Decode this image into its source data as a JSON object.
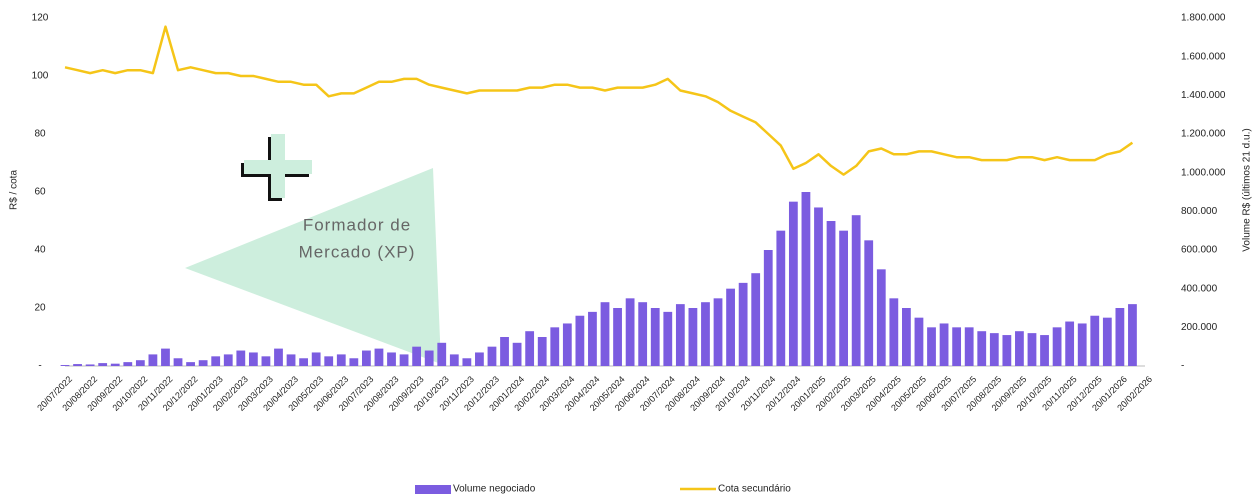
{
  "chart_data": {
    "type": "combo",
    "ylabel": "R$ / cota",
    "y2label": "Volume R$ (últimos 21 d.u.)",
    "annotation": [
      "Formador de",
      "Mercado (XP)"
    ],
    "categories": [
      "20/07/2022",
      null,
      "20/08/2022",
      null,
      "20/09/2022",
      null,
      "20/10/2022",
      null,
      "20/11/2022",
      null,
      "20/12/2022",
      null,
      "20/01/2023",
      null,
      "20/02/2023",
      null,
      "20/03/2023",
      null,
      "20/04/2023",
      null,
      "20/05/2023",
      null,
      "20/06/2023",
      null,
      "20/07/2023",
      null,
      "20/08/2023",
      null,
      "20/09/2023",
      null,
      "20/10/2023",
      null,
      "20/11/2023",
      null,
      "20/12/2023",
      null,
      "20/01/2024",
      null,
      "20/02/2024",
      null,
      "20/03/2024",
      null,
      "20/04/2024",
      null,
      "20/05/2024",
      null,
      "20/06/2024",
      null,
      "20/07/2024",
      null,
      "20/08/2024",
      null,
      "20/09/2024",
      null,
      "20/10/2024",
      null,
      "20/11/2024",
      null,
      "20/12/2024",
      null,
      "20/01/2025",
      null,
      "20/02/2025",
      null,
      "20/03/2025",
      null,
      "20/04/2025",
      null,
      "20/05/2025",
      null,
      "20/06/2025",
      null,
      "20/07/2025",
      null,
      "20/08/2025",
      null,
      "20/09/2025",
      null,
      "20/10/2025",
      null,
      "20/11/2025",
      null,
      "20/12/2025",
      null,
      "20/01/2026",
      null,
      "20/02/2026"
    ],
    "series": [
      {
        "name": "Volume negociado",
        "type": "bar",
        "axis": "y2",
        "color": "#7b5ce0",
        "values": [
          5000,
          10000,
          8000,
          15000,
          12000,
          20000,
          30000,
          60000,
          90000,
          40000,
          20000,
          30000,
          50000,
          60000,
          80000,
          70000,
          50000,
          90000,
          60000,
          40000,
          70000,
          50000,
          60000,
          40000,
          80000,
          90000,
          70000,
          60000,
          100000,
          80000,
          120000,
          60000,
          40000,
          70000,
          100000,
          150000,
          120000,
          180000,
          150000,
          200000,
          220000,
          260000,
          280000,
          330000,
          300000,
          350000,
          330000,
          300000,
          280000,
          320000,
          300000,
          330000,
          350000,
          400000,
          430000,
          480000,
          600000,
          700000,
          850000,
          900000,
          820000,
          750000,
          700000,
          780000,
          650000,
          500000,
          350000,
          300000,
          250000,
          200000,
          220000,
          200000,
          200000,
          180000,
          170000,
          160000,
          180000,
          170000,
          160000,
          200000,
          230000,
          220000,
          260000,
          250000,
          300000,
          320000,
          null
        ]
      },
      {
        "name": "Cota secundário",
        "type": "line",
        "axis": "y",
        "color": "#f5c518",
        "values": [
          103,
          102,
          101,
          102,
          101,
          102,
          102,
          101,
          117,
          102,
          103,
          102,
          101,
          101,
          100,
          100,
          99,
          98,
          98,
          97,
          97,
          93,
          94,
          94,
          96,
          98,
          98,
          99,
          99,
          97,
          96,
          95,
          94,
          95,
          95,
          95,
          95,
          96,
          96,
          97,
          97,
          96,
          96,
          95,
          96,
          96,
          96,
          97,
          99,
          95,
          94,
          93,
          91,
          88,
          86,
          84,
          80,
          76,
          68,
          70,
          73,
          69,
          66,
          69,
          74,
          75,
          73,
          73,
          74,
          74,
          73,
          72,
          72,
          71,
          71,
          71,
          72,
          72,
          71,
          72,
          71,
          71,
          71,
          73,
          74,
          77,
          null
        ]
      }
    ],
    "ylim": [
      0,
      120
    ],
    "yticks": [
      {
        "value": 0,
        "label": "-"
      },
      20,
      40,
      60,
      80,
      100,
      120
    ],
    "y2lim": [
      0,
      1800000
    ],
    "y2ticks": [
      {
        "value": 0,
        "label": "-"
      },
      {
        "value": 200000,
        "label": "200.000"
      },
      {
        "value": 400000,
        "label": "400.000"
      },
      {
        "value": 600000,
        "label": "600.000"
      },
      {
        "value": 800000,
        "label": "800.000"
      },
      {
        "value": 1000000,
        "label": "1.000.000"
      },
      {
        "value": 1200000,
        "label": "1.200.000"
      },
      {
        "value": 1400000,
        "label": "1.400.000"
      },
      {
        "value": 1600000,
        "label": "1.600.000"
      },
      {
        "value": 1800000,
        "label": "1.800.000"
      }
    ],
    "legend": "bottom"
  }
}
